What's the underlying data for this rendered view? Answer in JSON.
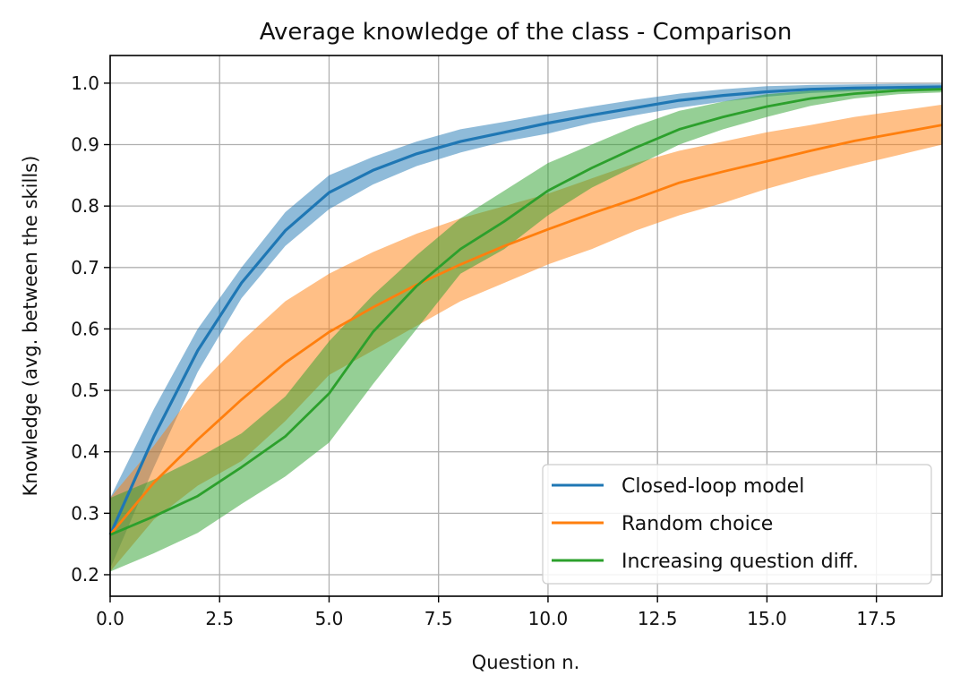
{
  "chart_data": {
    "type": "line",
    "title": "Average knowledge of the class - Comparison",
    "xlabel": "Question n.",
    "ylabel": "Knowledge (avg. between the skills)",
    "xlim": [
      0,
      19
    ],
    "ylim": [
      0.165,
      1.045
    ],
    "xticks": [
      0.0,
      2.5,
      5.0,
      7.5,
      10.0,
      12.5,
      15.0,
      17.5
    ],
    "xtick_labels": [
      "0.0",
      "2.5",
      "5.0",
      "7.5",
      "10.0",
      "12.5",
      "15.0",
      "17.5"
    ],
    "yticks": [
      0.2,
      0.3,
      0.4,
      0.5,
      0.6,
      0.7,
      0.8,
      0.9,
      1.0
    ],
    "ytick_labels": [
      "0.2",
      "0.3",
      "0.4",
      "0.5",
      "0.6",
      "0.7",
      "0.8",
      "0.9",
      "1.0"
    ],
    "grid": true,
    "legend_position": "lower-right",
    "x": [
      0,
      1,
      2,
      3,
      4,
      5,
      6,
      7,
      8,
      9,
      10,
      11,
      12,
      13,
      14,
      15,
      16,
      17,
      18,
      19
    ],
    "series": [
      {
        "name": "Closed-loop model",
        "color": "#1f77b4",
        "values": [
          0.265,
          0.425,
          0.565,
          0.675,
          0.76,
          0.822,
          0.858,
          0.885,
          0.905,
          0.92,
          0.935,
          0.948,
          0.96,
          0.972,
          0.98,
          0.986,
          0.99,
          0.992,
          0.993,
          0.994
        ],
        "lower": [
          0.21,
          0.375,
          0.53,
          0.65,
          0.735,
          0.795,
          0.835,
          0.865,
          0.887,
          0.905,
          0.918,
          0.935,
          0.948,
          0.96,
          0.97,
          0.978,
          0.984,
          0.987,
          0.99,
          0.99
        ],
        "upper": [
          0.325,
          0.47,
          0.6,
          0.7,
          0.79,
          0.85,
          0.88,
          0.905,
          0.925,
          0.937,
          0.95,
          0.962,
          0.973,
          0.983,
          0.99,
          0.995,
          0.997,
          0.998,
          0.999,
          0.999
        ]
      },
      {
        "name": "Random choice",
        "color": "#ff7f0e",
        "values": [
          0.265,
          0.35,
          0.42,
          0.485,
          0.545,
          0.595,
          0.635,
          0.672,
          0.705,
          0.735,
          0.762,
          0.788,
          0.812,
          0.838,
          0.856,
          0.873,
          0.89,
          0.906,
          0.919,
          0.932
        ],
        "lower": [
          0.205,
          0.29,
          0.345,
          0.385,
          0.45,
          0.525,
          0.565,
          0.605,
          0.645,
          0.675,
          0.705,
          0.73,
          0.76,
          0.785,
          0.805,
          0.828,
          0.848,
          0.866,
          0.883,
          0.9
        ],
        "upper": [
          0.325,
          0.41,
          0.505,
          0.58,
          0.645,
          0.69,
          0.725,
          0.755,
          0.78,
          0.8,
          0.82,
          0.845,
          0.87,
          0.89,
          0.905,
          0.92,
          0.932,
          0.945,
          0.955,
          0.965
        ]
      },
      {
        "name": "Increasing question diff.",
        "color": "#2ca02c",
        "values": [
          0.265,
          0.295,
          0.328,
          0.375,
          0.425,
          0.495,
          0.595,
          0.67,
          0.73,
          0.775,
          0.825,
          0.862,
          0.895,
          0.925,
          0.945,
          0.962,
          0.975,
          0.983,
          0.988,
          0.99
        ],
        "lower": [
          0.205,
          0.235,
          0.268,
          0.315,
          0.36,
          0.415,
          0.51,
          0.6,
          0.69,
          0.73,
          0.785,
          0.83,
          0.865,
          0.9,
          0.925,
          0.945,
          0.963,
          0.975,
          0.982,
          0.985
        ],
        "upper": [
          0.325,
          0.355,
          0.39,
          0.43,
          0.49,
          0.58,
          0.655,
          0.72,
          0.78,
          0.825,
          0.87,
          0.9,
          0.93,
          0.955,
          0.97,
          0.982,
          0.988,
          0.992,
          0.995,
          0.995
        ]
      }
    ]
  }
}
